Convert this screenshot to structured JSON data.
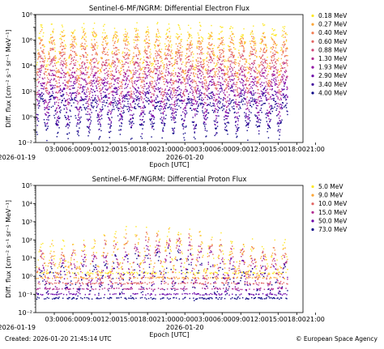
{
  "footer": {
    "created": "Created: 2026-01-20 21:45:14 UTC",
    "credit": "© European Space Agency"
  },
  "colors": {
    "palette": [
      "#fde725",
      "#fca636",
      "#f27d53",
      "#e16462",
      "#cc4778",
      "#b12a90",
      "#8f0da4",
      "#6a00a8",
      "#3e049c",
      "#0d0887"
    ]
  },
  "chart_data": [
    {
      "type": "scatter",
      "title": "Sentinel-6-MF/NGRM: Differential Electron Flux",
      "xlabel": "Epoch [UTC]",
      "ylabel": "Diff. flux [cm⁻² s⁻¹ sr⁻¹ MeV⁻¹]",
      "yscale": "log",
      "ylim": [
        0.01,
        100000000
      ],
      "yticks": [
        "10⁻²",
        "10⁰",
        "10²",
        "10⁴",
        "10⁶",
        "10⁸"
      ],
      "xlim_hours": [
        0,
        43
      ],
      "xticks": [
        "03:00",
        "06:00",
        "09:00",
        "12:00",
        "15:00",
        "18:00",
        "21:00",
        "00:00",
        "03:00",
        "06:00",
        "09:00",
        "12:00",
        "15:00",
        "18:00",
        "21:00"
      ],
      "date_labels": [
        "2026-01-19",
        "2026-01-20"
      ],
      "grid": false,
      "legend": "outside-right",
      "series": [
        {
          "name": "0.18 MeV",
          "color": "#fde725",
          "base": 40000
        },
        {
          "name": "0.27 MeV",
          "color": "#fca636",
          "base": 15000
        },
        {
          "name": "0.40 MeV",
          "color": "#f27d53",
          "base": 5000
        },
        {
          "name": "0.60 MeV",
          "color": "#e16462",
          "base": 1500
        },
        {
          "name": "0.88 MeV",
          "color": "#cc4778",
          "base": 400
        },
        {
          "name": "1.30 MeV",
          "color": "#b12a90",
          "base": 100
        },
        {
          "name": "1.93 MeV",
          "color": "#8f0da4",
          "base": 30
        },
        {
          "name": "2.90 MeV",
          "color": "#6a00a8",
          "base": 8
        },
        {
          "name": "3.40 MeV",
          "color": "#3e049c",
          "base": 3
        },
        {
          "name": "4.00 MeV",
          "color": "#0d0887",
          "base": 1
        }
      ]
    },
    {
      "type": "scatter",
      "title": "Sentinel-6-MF/NGRM: Differential Proton Flux",
      "xlabel": "Epoch [UTC]",
      "ylabel": "Diff. flux [cm⁻² s⁻¹ sr⁻¹ MeV⁻¹]",
      "yscale": "log",
      "ylim": [
        0.01,
        100000
      ],
      "yticks": [
        "10⁻²",
        "10⁻¹",
        "10⁰",
        "10¹",
        "10²",
        "10³",
        "10⁴",
        "10⁵"
      ],
      "xlim_hours": [
        0,
        43
      ],
      "xticks": [
        "03:00",
        "06:00",
        "09:00",
        "12:00",
        "15:00",
        "18:00",
        "21:00",
        "00:00",
        "03:00",
        "06:00",
        "09:00",
        "12:00",
        "15:00",
        "18:00",
        "21:00"
      ],
      "date_labels": [
        "2026-01-19",
        "2026-01-20"
      ],
      "grid": false,
      "legend": "outside-right",
      "series": [
        {
          "name": "5.0 MeV",
          "color": "#fde725",
          "base": 8,
          "floor": 1.5
        },
        {
          "name": "9.0 MeV",
          "color": "#fca636",
          "base": 5,
          "floor": 0.8
        },
        {
          "name": "10.0 MeV",
          "color": "#e16462",
          "base": 3,
          "floor": 0.4
        },
        {
          "name": "15.0 MeV",
          "color": "#b12a90",
          "base": 1.8,
          "floor": 0.2
        },
        {
          "name": "50.0 MeV",
          "color": "#6a00a8",
          "base": 0.7,
          "floor": 0.1
        },
        {
          "name": "73.0 MeV",
          "color": "#0d0887",
          "base": 0.35,
          "floor": 0.06
        }
      ]
    }
  ]
}
